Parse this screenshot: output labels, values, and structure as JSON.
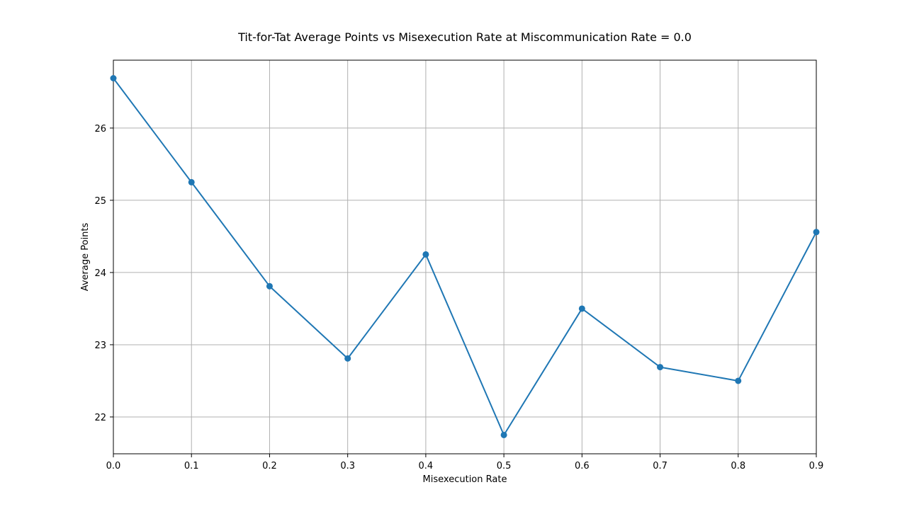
{
  "chart_data": {
    "type": "line",
    "title": "Tit-for-Tat Average Points vs Misexecution Rate at Miscommunication Rate = 0.0",
    "xlabel": "Misexecution Rate",
    "ylabel": "Average Points",
    "xlim": [
      0.0,
      0.9
    ],
    "ylim": [
      21.49,
      26.94
    ],
    "xticks": [
      "0.0",
      "0.1",
      "0.2",
      "0.3",
      "0.4",
      "0.5",
      "0.6",
      "0.7",
      "0.8",
      "0.9"
    ],
    "yticks": [
      "22",
      "23",
      "24",
      "25",
      "26"
    ],
    "grid": true,
    "series": [
      {
        "color": "#1f77b4",
        "x": [
          0.0,
          0.1,
          0.2,
          0.3,
          0.4,
          0.5,
          0.6,
          0.7,
          0.8,
          0.9
        ],
        "y": [
          26.69,
          25.25,
          23.81,
          22.81,
          24.25,
          21.75,
          23.5,
          22.69,
          22.5,
          24.56
        ]
      }
    ]
  }
}
